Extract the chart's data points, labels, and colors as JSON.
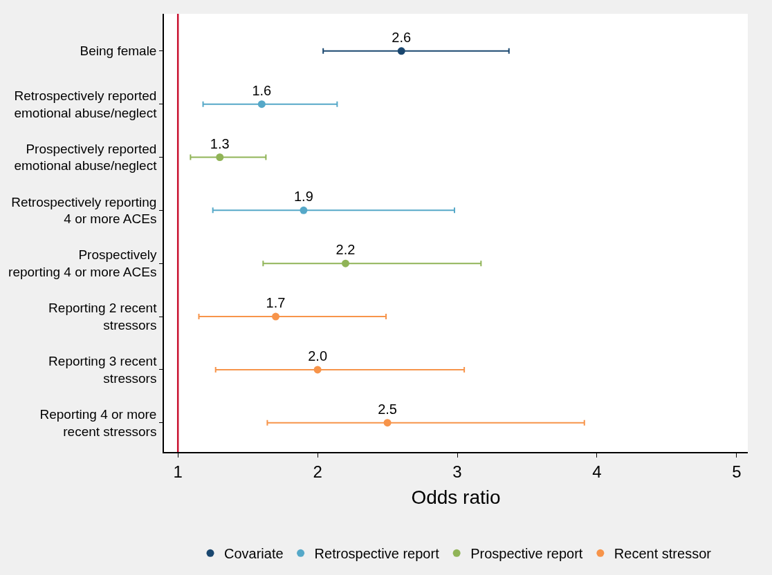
{
  "chart_data": {
    "type": "scatter",
    "orientation": "horizontal",
    "xlabel": "Odds ratio",
    "categories": [
      "Being female",
      "Retrospectively reported\nemotional abuse/neglect",
      "Prospectively reported\nemotional abuse/neglect",
      "Retrospectively reporting\n4 or more ACEs",
      "Prospectively\nreporting 4 or more ACEs",
      "Reporting 2 recent\nstressors",
      "Reporting 3 recent\nstressors",
      "Reporting 4 or more\nrecent stressors"
    ],
    "series": [
      {
        "name": "Covariate",
        "color": "#1a476f",
        "values": [
          2.6,
          null,
          null,
          null,
          null,
          null,
          null,
          null
        ],
        "value_labels": [
          "2.6",
          null,
          null,
          null,
          null,
          null,
          null,
          null
        ],
        "errors": [
          [
            2.04,
            3.37
          ],
          null,
          null,
          null,
          null,
          null,
          null,
          null
        ]
      },
      {
        "name": "Retrospective report",
        "color": "#55a8c8",
        "values": [
          null,
          1.6,
          null,
          1.9,
          null,
          null,
          null,
          null
        ],
        "value_labels": [
          null,
          "1.6",
          null,
          "1.9",
          null,
          null,
          null,
          null
        ],
        "errors": [
          null,
          [
            1.18,
            2.14
          ],
          null,
          [
            1.25,
            2.98
          ],
          null,
          null,
          null,
          null
        ]
      },
      {
        "name": "Prospective report",
        "color": "#90b457",
        "values": [
          null,
          null,
          1.3,
          null,
          2.2,
          null,
          null,
          null
        ],
        "value_labels": [
          null,
          null,
          "1.3",
          null,
          "2.2",
          null,
          null,
          null
        ],
        "errors": [
          null,
          null,
          [
            1.09,
            1.63
          ],
          null,
          [
            1.61,
            3.17
          ],
          null,
          null,
          null
        ]
      },
      {
        "name": "Recent stressor",
        "color": "#f7944a",
        "values": [
          null,
          null,
          null,
          null,
          null,
          1.7,
          2.0,
          2.5
        ],
        "value_labels": [
          null,
          null,
          null,
          null,
          null,
          "1.7",
          "2.0",
          "2.5"
        ],
        "errors": [
          null,
          null,
          null,
          null,
          null,
          [
            1.15,
            2.49
          ],
          [
            1.27,
            3.05
          ],
          [
            1.64,
            3.91
          ]
        ]
      }
    ],
    "xlim": [
      0.9,
      5.08
    ],
    "xticks": [
      1,
      2,
      3,
      4,
      5
    ],
    "ref_lines": [
      {
        "axis": "x",
        "value": 1,
        "color": "#c8102e"
      }
    ],
    "marker": "circle",
    "legend": "bottom"
  }
}
